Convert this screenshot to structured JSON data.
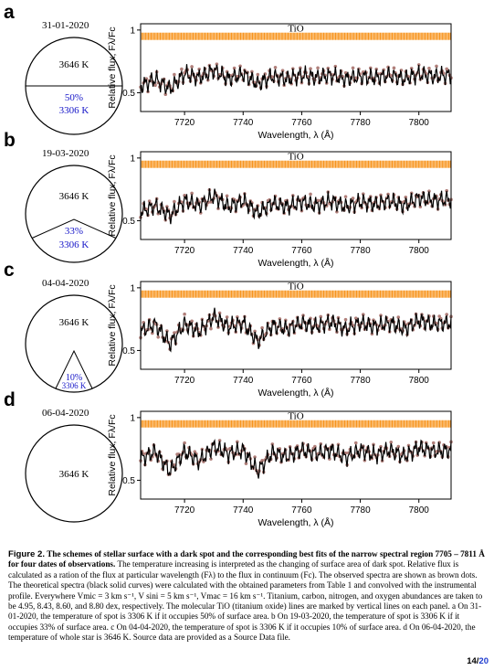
{
  "panels": [
    {
      "letter": "a",
      "date": "31-01-2020",
      "scheme": "half",
      "star_temp": "3646 K",
      "spot_fraction": "50%",
      "spot_temp": "3306 K",
      "ylabel": "Relative flux, Fλ/Fc",
      "xlabel": "Wavelength, λ (Å)",
      "tio_label": "TiO",
      "xticks": [
        "7720",
        "7740",
        "7760",
        "7780",
        "7800"
      ],
      "yticks": [
        "1",
        "0.5"
      ]
    },
    {
      "letter": "b",
      "date": "19-03-2020",
      "scheme": "third",
      "star_temp": "3646 K",
      "spot_fraction": "33%",
      "spot_temp": "3306 K",
      "ylabel": "Relative flux, Fλ/Fc",
      "xlabel": "Wavelength, λ (Å)",
      "tio_label": "TiO",
      "xticks": [
        "7720",
        "7740",
        "7760",
        "7780",
        "7800"
      ],
      "yticks": [
        "1",
        "0.5"
      ]
    },
    {
      "letter": "c",
      "date": "04-04-2020",
      "scheme": "tenth",
      "star_temp": "3646 K",
      "spot_fraction": "10%",
      "spot_temp": "3306 K",
      "ylabel": "Relative flux, Fλ/Fc",
      "xlabel": "Wavelength, λ (Å)",
      "tio_label": "TiO",
      "xticks": [
        "7720",
        "7740",
        "7760",
        "7780",
        "7800"
      ],
      "yticks": [
        "1",
        "0.5"
      ]
    },
    {
      "letter": "d",
      "date": "06-04-2020",
      "scheme": "none",
      "star_temp": "3646 K",
      "spot_fraction": "",
      "spot_temp": "",
      "ylabel": "Relative flux, Fλ/Fc",
      "xlabel": "Wavelength, λ (Å)",
      "tio_label": "TiO",
      "xticks": [
        "7720",
        "7740",
        "7760",
        "7780",
        "7800"
      ],
      "yticks": [
        "1",
        "0.5"
      ]
    }
  ],
  "colors": {
    "spot_text": "#1515c8",
    "tio_markers": "#f7941d",
    "observed": "#b07f7a",
    "model": "#000000"
  },
  "caption": {
    "figure_label": "Figure 2.",
    "title_bold": "The schemes of stellar surface with a dark spot and the corresponding best fits of the narrow spectral region 7705 – 7811 Å  for four dates of observations.",
    "body": "The temperature increasing is interpreted as the changing of surface area of dark spot. Relative flux is calculated as a ration of the flux at particular wavelength (Fλ) to the flux in continuum (Fc). The observed spectra are shown as brown dots. The theoretical spectra (black solid curves) were calculated with the obtained parameters from Table 1 and convolved with the instrumental profile. Everywhere Vmic = 3 km s⁻¹, V sini = 5 km s⁻¹, Vmac = 16 km s⁻¹. Titanium, carbon, nitrogen, and oxygen abundances are taken to be 4.95, 8.43, 8.60, and 8.80 dex, respectively. The molecular TiO (titanium oxide) lines are marked by vertical lines on each panel. a On 31-01-2020, the temperature of spot is 3306 K if it occupies 50% of surface area. b On 19-03-2020, the temperature of spot is 3306 K if it occupies 33% of surface area. c On 04-04-2020, the temperature of spot is 3306 K if it occupies 10% of surface area. d On 06-04-2020, the temperature of whole star is 3646 K. Source data are provided as a Source Data file."
  },
  "page": {
    "current": "14/",
    "total": "20"
  },
  "chart_data": [
    {
      "type": "line",
      "panel": "a",
      "xlabel": "Wavelength, λ (Å)",
      "ylabel": "Relative flux, Fλ/Fc",
      "xlim": [
        7705,
        7811
      ],
      "ylim": [
        0.35,
        1.05
      ],
      "xticks": [
        7720,
        7740,
        7760,
        7780,
        7800
      ],
      "yticks": [
        0.5,
        1
      ],
      "tio_marker_level": 0.95,
      "series": [
        {
          "x": [
            7705,
            7710,
            7715,
            7720,
            7725,
            7730,
            7735,
            7740,
            7745,
            7750,
            7755,
            7760,
            7765,
            7770,
            7775,
            7780,
            7785,
            7790,
            7795,
            7800,
            7805,
            7811
          ],
          "y": [
            0.56,
            0.6,
            0.54,
            0.66,
            0.63,
            0.68,
            0.62,
            0.66,
            0.58,
            0.64,
            0.62,
            0.64,
            0.63,
            0.65,
            0.62,
            0.64,
            0.63,
            0.65,
            0.62,
            0.66,
            0.64,
            0.65
          ]
        },
        {
          "x": [
            7705,
            7710,
            7715,
            7720,
            7725,
            7730,
            7735,
            7740,
            7745,
            7750,
            7755,
            7760,
            7765,
            7770,
            7775,
            7780,
            7785,
            7790,
            7795,
            7800,
            7805,
            7811
          ],
          "y": [
            0.55,
            0.61,
            0.53,
            0.65,
            0.62,
            0.68,
            0.61,
            0.65,
            0.57,
            0.63,
            0.61,
            0.64,
            0.62,
            0.64,
            0.61,
            0.63,
            0.62,
            0.64,
            0.61,
            0.65,
            0.63,
            0.64
          ]
        }
      ]
    },
    {
      "type": "line",
      "panel": "b",
      "xlabel": "Wavelength, λ (Å)",
      "ylabel": "Relative flux, Fλ/Fc",
      "xlim": [
        7705,
        7811
      ],
      "ylim": [
        0.35,
        1.05
      ],
      "xticks": [
        7720,
        7740,
        7760,
        7780,
        7800
      ],
      "yticks": [
        0.5,
        1
      ],
      "tio_marker_level": 0.95,
      "series": [
        {
          "x": [
            7705,
            7710,
            7715,
            7720,
            7725,
            7730,
            7735,
            7740,
            7745,
            7750,
            7755,
            7760,
            7765,
            7770,
            7775,
            7780,
            7785,
            7790,
            7795,
            7800,
            7805,
            7811
          ],
          "y": [
            0.58,
            0.62,
            0.55,
            0.66,
            0.63,
            0.69,
            0.62,
            0.66,
            0.57,
            0.64,
            0.62,
            0.65,
            0.63,
            0.66,
            0.62,
            0.65,
            0.64,
            0.66,
            0.63,
            0.68,
            0.66,
            0.67
          ]
        },
        {
          "x": [
            7705,
            7710,
            7715,
            7720,
            7725,
            7730,
            7735,
            7740,
            7745,
            7750,
            7755,
            7760,
            7765,
            7770,
            7775,
            7780,
            7785,
            7790,
            7795,
            7800,
            7805,
            7811
          ],
          "y": [
            0.57,
            0.62,
            0.54,
            0.66,
            0.62,
            0.7,
            0.61,
            0.66,
            0.56,
            0.64,
            0.61,
            0.65,
            0.62,
            0.66,
            0.61,
            0.65,
            0.63,
            0.66,
            0.62,
            0.68,
            0.66,
            0.67
          ]
        }
      ]
    },
    {
      "type": "line",
      "panel": "c",
      "xlabel": "Wavelength, λ (Å)",
      "ylabel": "Relative flux, Fλ/Fc",
      "xlim": [
        7705,
        7811
      ],
      "ylim": [
        0.35,
        1.05
      ],
      "xticks": [
        7720,
        7740,
        7760,
        7780,
        7800
      ],
      "yticks": [
        0.5,
        1
      ],
      "tio_marker_level": 0.95,
      "series": [
        {
          "x": [
            7705,
            7710,
            7715,
            7720,
            7725,
            7730,
            7735,
            7740,
            7745,
            7750,
            7755,
            7760,
            7765,
            7770,
            7775,
            7780,
            7785,
            7790,
            7795,
            7800,
            7805,
            7811
          ],
          "y": [
            0.66,
            0.7,
            0.56,
            0.72,
            0.66,
            0.76,
            0.7,
            0.72,
            0.58,
            0.7,
            0.68,
            0.72,
            0.7,
            0.73,
            0.68,
            0.72,
            0.7,
            0.72,
            0.68,
            0.74,
            0.72,
            0.73
          ]
        },
        {
          "x": [
            7705,
            7710,
            7715,
            7720,
            7725,
            7730,
            7735,
            7740,
            7745,
            7750,
            7755,
            7760,
            7765,
            7770,
            7775,
            7780,
            7785,
            7790,
            7795,
            7800,
            7805,
            7811
          ],
          "y": [
            0.65,
            0.71,
            0.55,
            0.71,
            0.65,
            0.77,
            0.69,
            0.72,
            0.57,
            0.7,
            0.67,
            0.72,
            0.69,
            0.73,
            0.67,
            0.72,
            0.69,
            0.72,
            0.67,
            0.74,
            0.71,
            0.72
          ]
        }
      ]
    },
    {
      "type": "line",
      "panel": "d",
      "xlabel": "Wavelength, λ (Å)",
      "ylabel": "Relative flux, Fλ/Fc",
      "xlim": [
        7705,
        7811
      ],
      "ylim": [
        0.35,
        1.05
      ],
      "xticks": [
        7720,
        7740,
        7760,
        7780,
        7800
      ],
      "yticks": [
        0.5,
        1
      ],
      "tio_marker_level": 0.95,
      "series": [
        {
          "x": [
            7705,
            7710,
            7715,
            7720,
            7725,
            7730,
            7735,
            7740,
            7745,
            7750,
            7755,
            7760,
            7765,
            7770,
            7775,
            7780,
            7785,
            7790,
            7795,
            7800,
            7805,
            7811
          ],
          "y": [
            0.68,
            0.72,
            0.58,
            0.74,
            0.66,
            0.76,
            0.72,
            0.74,
            0.58,
            0.72,
            0.7,
            0.74,
            0.72,
            0.74,
            0.69,
            0.74,
            0.71,
            0.74,
            0.7,
            0.76,
            0.74,
            0.75
          ]
        },
        {
          "x": [
            7705,
            7710,
            7715,
            7720,
            7725,
            7730,
            7735,
            7740,
            7745,
            7750,
            7755,
            7760,
            7765,
            7770,
            7775,
            7780,
            7785,
            7790,
            7795,
            7800,
            7805,
            7811
          ],
          "y": [
            0.67,
            0.73,
            0.57,
            0.73,
            0.65,
            0.77,
            0.71,
            0.74,
            0.57,
            0.72,
            0.69,
            0.74,
            0.71,
            0.74,
            0.68,
            0.74,
            0.7,
            0.74,
            0.69,
            0.76,
            0.73,
            0.74
          ]
        }
      ]
    }
  ]
}
